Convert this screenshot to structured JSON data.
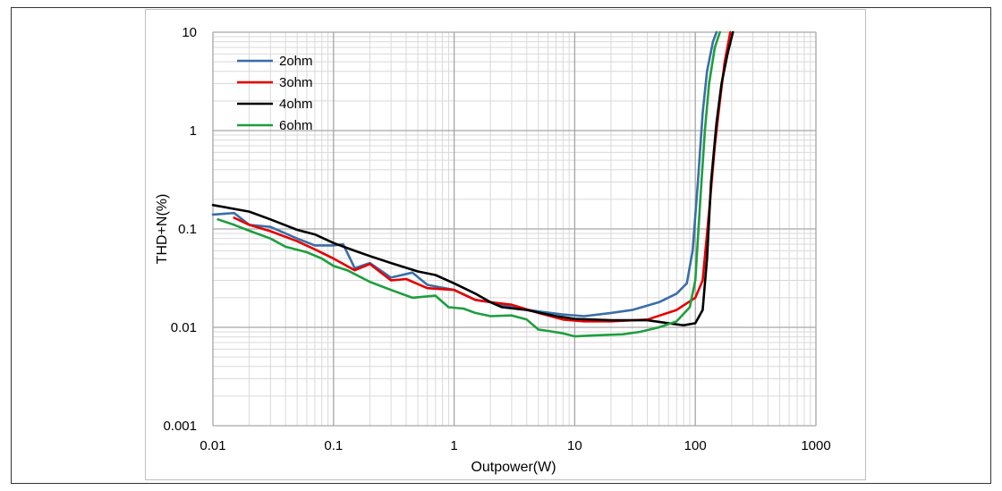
{
  "chart_data": {
    "type": "line",
    "title": "",
    "xlabel": "Outpower(W)",
    "ylabel": "THD+N(%)",
    "x_scale": "log",
    "y_scale": "log",
    "xlim": [
      0.01,
      1000
    ],
    "ylim": [
      0.001,
      10
    ],
    "x_ticks": [
      "0.01",
      "0.1",
      "1",
      "10",
      "100",
      "1000"
    ],
    "y_ticks": [
      "0.001",
      "0.01",
      "0.1",
      "1",
      "10"
    ],
    "grid": true,
    "legend_position": "top-left",
    "series": [
      {
        "name": "2ohm",
        "color": "#3a6ea8",
        "points": [
          [
            0.01,
            0.14
          ],
          [
            0.015,
            0.145
          ],
          [
            0.02,
            0.11
          ],
          [
            0.03,
            0.105
          ],
          [
            0.05,
            0.08
          ],
          [
            0.07,
            0.068
          ],
          [
            0.1,
            0.068
          ],
          [
            0.12,
            0.07
          ],
          [
            0.15,
            0.04
          ],
          [
            0.2,
            0.045
          ],
          [
            0.3,
            0.032
          ],
          [
            0.45,
            0.036
          ],
          [
            0.6,
            0.027
          ],
          [
            1,
            0.024
          ],
          [
            1.5,
            0.019
          ],
          [
            2,
            0.018
          ],
          [
            3,
            0.016
          ],
          [
            5,
            0.0145
          ],
          [
            8,
            0.0135
          ],
          [
            12,
            0.013
          ],
          [
            20,
            0.014
          ],
          [
            30,
            0.015
          ],
          [
            50,
            0.018
          ],
          [
            70,
            0.022
          ],
          [
            85,
            0.028
          ],
          [
            95,
            0.06
          ],
          [
            105,
            0.3
          ],
          [
            115,
            1.5
          ],
          [
            125,
            4
          ],
          [
            140,
            8
          ],
          [
            150,
            11
          ]
        ]
      },
      {
        "name": "3ohm",
        "color": "#e60000",
        "points": [
          [
            0.015,
            0.13
          ],
          [
            0.02,
            0.11
          ],
          [
            0.03,
            0.095
          ],
          [
            0.05,
            0.075
          ],
          [
            0.07,
            0.062
          ],
          [
            0.1,
            0.05
          ],
          [
            0.15,
            0.038
          ],
          [
            0.2,
            0.044
          ],
          [
            0.3,
            0.03
          ],
          [
            0.4,
            0.031
          ],
          [
            0.6,
            0.025
          ],
          [
            1,
            0.024
          ],
          [
            1.5,
            0.019
          ],
          [
            2,
            0.018
          ],
          [
            3,
            0.017
          ],
          [
            5,
            0.014
          ],
          [
            8,
            0.012
          ],
          [
            12,
            0.0115
          ],
          [
            20,
            0.0115
          ],
          [
            40,
            0.012
          ],
          [
            70,
            0.015
          ],
          [
            100,
            0.02
          ],
          [
            115,
            0.03
          ],
          [
            130,
            0.15
          ],
          [
            145,
            0.7
          ],
          [
            160,
            2
          ],
          [
            175,
            5
          ],
          [
            195,
            10
          ]
        ]
      },
      {
        "name": "4ohm",
        "color": "#000000",
        "points": [
          [
            0.01,
            0.175
          ],
          [
            0.02,
            0.15
          ],
          [
            0.03,
            0.125
          ],
          [
            0.05,
            0.098
          ],
          [
            0.07,
            0.088
          ],
          [
            0.1,
            0.072
          ],
          [
            0.15,
            0.06
          ],
          [
            0.2,
            0.053
          ],
          [
            0.3,
            0.045
          ],
          [
            0.5,
            0.037
          ],
          [
            0.7,
            0.034
          ],
          [
            1,
            0.028
          ],
          [
            1.5,
            0.022
          ],
          [
            2,
            0.018
          ],
          [
            2.5,
            0.016
          ],
          [
            4,
            0.015
          ],
          [
            7,
            0.013
          ],
          [
            10,
            0.0122
          ],
          [
            20,
            0.0118
          ],
          [
            40,
            0.0118
          ],
          [
            60,
            0.011
          ],
          [
            80,
            0.0105
          ],
          [
            100,
            0.011
          ],
          [
            115,
            0.015
          ],
          [
            125,
            0.05
          ],
          [
            135,
            0.3
          ],
          [
            150,
            1.2
          ],
          [
            165,
            3
          ],
          [
            185,
            6
          ],
          [
            205,
            10
          ]
        ]
      },
      {
        "name": "6ohm",
        "color": "#1e9e3e",
        "points": [
          [
            0.011,
            0.125
          ],
          [
            0.015,
            0.11
          ],
          [
            0.02,
            0.096
          ],
          [
            0.03,
            0.08
          ],
          [
            0.04,
            0.066
          ],
          [
            0.06,
            0.058
          ],
          [
            0.08,
            0.05
          ],
          [
            0.1,
            0.042
          ],
          [
            0.13,
            0.038
          ],
          [
            0.2,
            0.029
          ],
          [
            0.3,
            0.024
          ],
          [
            0.45,
            0.02
          ],
          [
            0.7,
            0.021
          ],
          [
            0.9,
            0.016
          ],
          [
            1.2,
            0.0155
          ],
          [
            1.5,
            0.014
          ],
          [
            2,
            0.013
          ],
          [
            3,
            0.0132
          ],
          [
            4,
            0.012
          ],
          [
            5,
            0.0095
          ],
          [
            6,
            0.0092
          ],
          [
            8,
            0.0087
          ],
          [
            10,
            0.0081
          ],
          [
            15,
            0.0083
          ],
          [
            25,
            0.0085
          ],
          [
            35,
            0.009
          ],
          [
            50,
            0.01
          ],
          [
            70,
            0.0115
          ],
          [
            90,
            0.016
          ],
          [
            100,
            0.03
          ],
          [
            110,
            0.2
          ],
          [
            120,
            1
          ],
          [
            130,
            3
          ],
          [
            145,
            7
          ],
          [
            160,
            11
          ]
        ]
      }
    ]
  }
}
